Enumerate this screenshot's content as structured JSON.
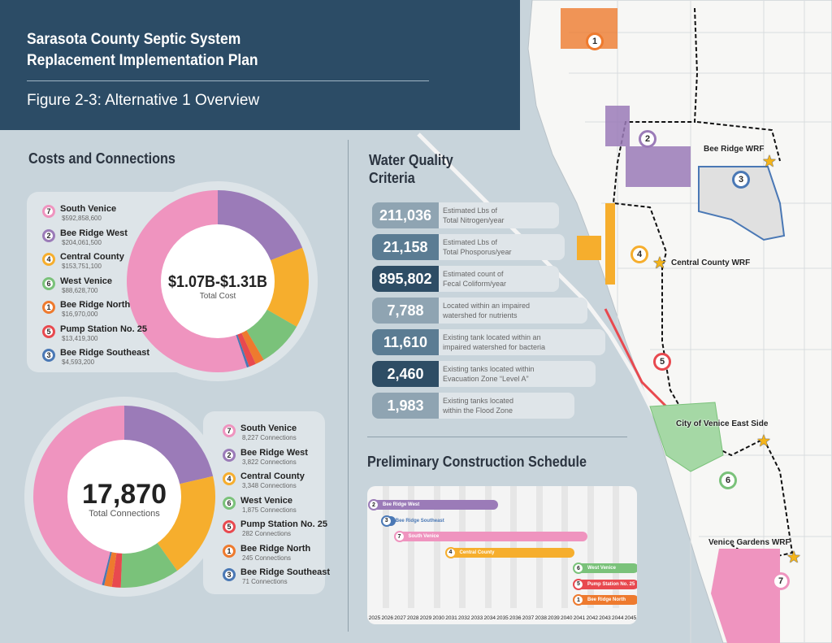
{
  "header": {
    "title_line1": "Sarasota County Septic System",
    "title_line2": "Replacement Implementation Plan",
    "subtitle": "Figure 2-3: Alternative 1 Overview"
  },
  "colors": {
    "banner": "#2c4c66",
    "south_venice": "#ef94bf",
    "bee_ridge_west": "#9b7bb8",
    "central_county": "#f6ae2d",
    "west_venice": "#7ac27a",
    "bee_ridge_north": "#ee7a2e",
    "pump_station_25": "#e8494f",
    "bee_ridge_southeast": "#4a78b5"
  },
  "costs": {
    "heading": "Costs and Connections",
    "center_value": "$1.07B-$1.31B",
    "center_label": "Total Cost"
  },
  "connections": {
    "center_value": "17,870",
    "center_label": "Total Connections"
  },
  "water_quality": {
    "heading_line1": "Water Quality",
    "heading_line2": "Criteria",
    "items": [
      {
        "value": "211,036",
        "line1": "Estimated Lbs of",
        "line2": "Total Nitrogen/year"
      },
      {
        "value": "21,158",
        "line1": "Estimated Lbs of",
        "line2": "Total Phosporus/year"
      },
      {
        "value": "895,802",
        "line1": "Estimated count of",
        "line2": "Fecal Coliform/year"
      },
      {
        "value": "7,788",
        "line1": "Located within an impaired",
        "line2": "watershed for nutrients"
      },
      {
        "value": "11,610",
        "line1": "Existing tank located within an",
        "line2": "impaired watershed for bacteria"
      },
      {
        "value": "2,460",
        "line1": "Existing tanks located within",
        "line2": "Evacuation Zone “Level A”"
      },
      {
        "value": "1,983",
        "line1": "Existing tanks located",
        "line2": "within the Flood Zone"
      }
    ]
  },
  "schedule": {
    "heading": "Preliminary Construction Schedule"
  },
  "map": {
    "labels": {
      "bee_ridge_wrf": "Bee Ridge WRF",
      "central_county_wrf": "Central County WRF",
      "venice_east": "City of Venice East Side",
      "venice_gardens_wrf": "Venice Gardens WRF"
    },
    "area_numbers": [
      "1",
      "2",
      "3",
      "4",
      "5",
      "6",
      "7"
    ]
  },
  "chart_data": [
    {
      "type": "pie",
      "title": "Total Cost",
      "center_text": "$1.07B-$1.31B",
      "categories": [
        "South Venice",
        "Bee Ridge West",
        "Central County",
        "West Venice",
        "Bee Ridge North",
        "Pump Station No. 25",
        "Bee Ridge Southeast"
      ],
      "numbers": [
        "7",
        "2",
        "4",
        "6",
        "1",
        "5",
        "3"
      ],
      "labels": [
        "$592,858,600",
        "$204,061,500",
        "$153,751,100",
        "$88,628,700",
        "$16,970,000",
        "$13,419,300",
        "$4,593,200"
      ],
      "values": [
        592858600,
        204061500,
        153751100,
        88628700,
        16970000,
        13419300,
        4593200
      ]
    },
    {
      "type": "pie",
      "title": "Total Connections",
      "center_text": "17,870",
      "categories": [
        "South Venice",
        "Bee Ridge West",
        "Central County",
        "West Venice",
        "Pump Station No. 25",
        "Bee Ridge North",
        "Bee Ridge Southeast"
      ],
      "numbers": [
        "7",
        "2",
        "4",
        "6",
        "5",
        "1",
        "3"
      ],
      "labels": [
        "8,227 Connections",
        "3,822 Connections",
        "3,348 Connections",
        "1,875 Connections",
        "282 Connections",
        "245 Connections",
        "71 Connections"
      ],
      "values": [
        8227,
        3822,
        3348,
        1875,
        282,
        245,
        71
      ]
    },
    {
      "type": "bar",
      "subtype": "gantt",
      "title": "Preliminary Construction Schedule",
      "x_ticks": [
        "2025",
        "2026",
        "2027",
        "2028",
        "2029",
        "2030",
        "2031",
        "2032",
        "2033",
        "2034",
        "2035",
        "2036",
        "2037",
        "2038",
        "2039",
        "2040",
        "2041",
        "2042",
        "2043",
        "2044",
        "2045"
      ],
      "xlim": [
        2025,
        2046
      ],
      "tasks": [
        {
          "num": "2",
          "name": "Bee Ridge West",
          "start": 2025,
          "end": 2035,
          "color": "#9b7bb8"
        },
        {
          "num": "3",
          "name": "Bee Ridge Southeast",
          "start": 2026,
          "end": 2027,
          "color": "#4a78b5"
        },
        {
          "num": "7",
          "name": "South Venice",
          "start": 2027,
          "end": 2042,
          "color": "#ef94bf"
        },
        {
          "num": "4",
          "name": "Central County",
          "start": 2031,
          "end": 2041,
          "color": "#f6ae2d"
        },
        {
          "num": "6",
          "name": "West Venice",
          "start": 2041,
          "end": 2046,
          "color": "#7ac27a"
        },
        {
          "num": "5",
          "name": "Pump Station No. 25",
          "start": 2041,
          "end": 2046,
          "color": "#e8494f"
        },
        {
          "num": "1",
          "name": "Bee Ridge North",
          "start": 2041,
          "end": 2046,
          "color": "#ee7a2e"
        }
      ]
    }
  ]
}
